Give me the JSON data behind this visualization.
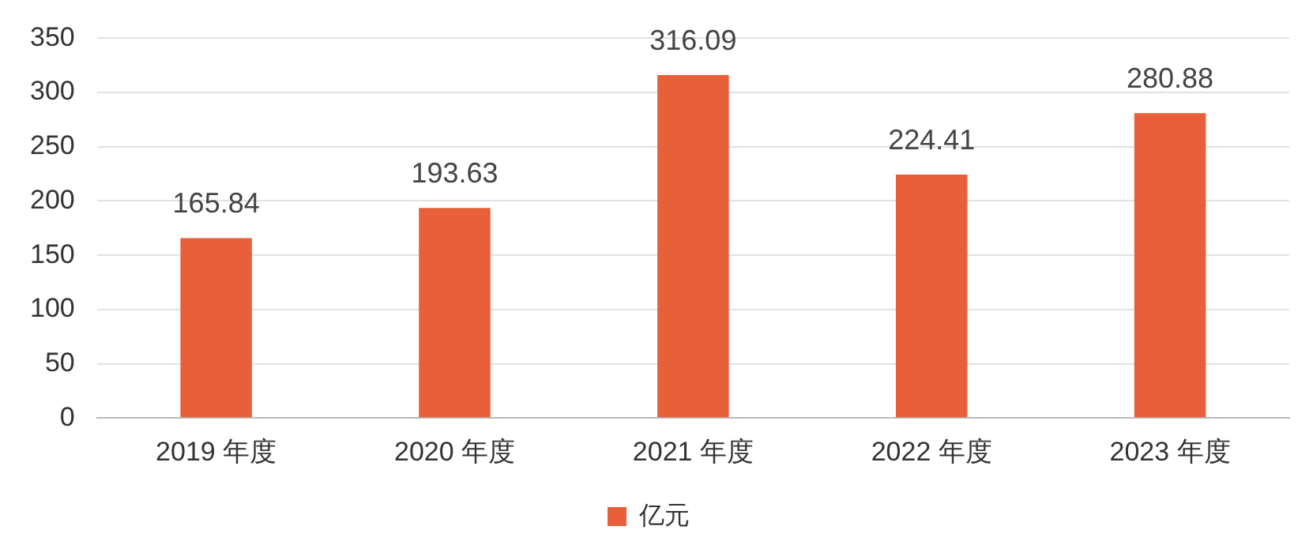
{
  "chart_data": {
    "type": "bar",
    "categories": [
      "2019 年度",
      "2020 年度",
      "2021 年度",
      "2022 年度",
      "2023 年度"
    ],
    "series": [
      {
        "name": "亿元",
        "color": "#e8603a",
        "values": [
          165.84,
          193.63,
          316.09,
          224.41,
          280.88
        ]
      }
    ],
    "ylim": [
      0,
      350
    ],
    "yticks": [
      0,
      50,
      100,
      150,
      200,
      250,
      300,
      350
    ],
    "grid": "y",
    "legend": "bottom",
    "data_labels": true
  }
}
